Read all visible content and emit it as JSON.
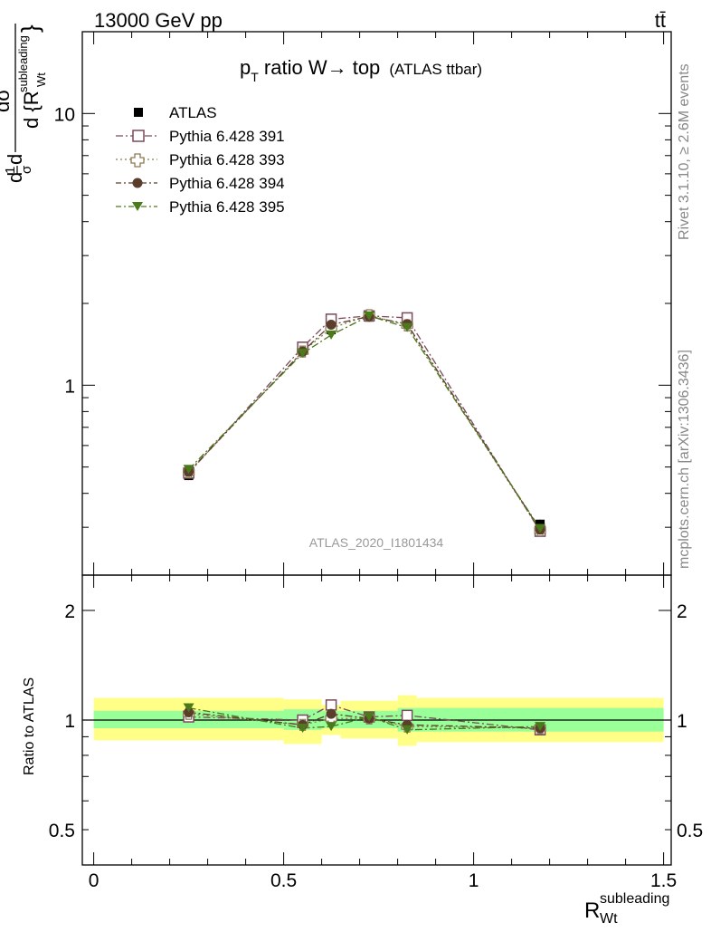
{
  "header": {
    "energy_label": "13000 GeV pp",
    "process_label": "tt̄"
  },
  "side_labels": {
    "rivet": "Rivet 3.1.10, ≥ 2.6M events",
    "mcplots": "mcplots.cern.ch [arXiv:1306.3436]"
  },
  "chart_data": [
    {
      "type": "line",
      "title_main": "p",
      "title_sub": "T",
      "title_rest": " ratio W→ top",
      "title_small": "(ATLAS ttbar)",
      "analysis_label": "ATLAS_2020_I1801434",
      "ylabel_parts": [
        "d",
        "1",
        "σ",
        "d",
        "dσ",
        "fid",
        "d {R",
        "subleading",
        "Wt",
        "}"
      ],
      "yscale": "log",
      "ylim": [
        0.2,
        20
      ],
      "xlim": [
        -0.03,
        1.52
      ],
      "y_ticklabels": [
        {
          "value": 1,
          "label": "1"
        },
        {
          "value": 10,
          "label": "10"
        }
      ],
      "legend_position": "top-left",
      "x": [
        0.25,
        0.55,
        0.625,
        0.725,
        0.825,
        1.175
      ],
      "x_err": [
        0.25,
        0.05,
        0.025,
        0.075,
        0.025,
        0.325
      ],
      "series": [
        {
          "name": "ATLAS",
          "color": "#000000",
          "marker": "square-filled",
          "line": "none",
          "values": [
            0.465,
            1.38,
            1.6,
            1.78,
            1.74,
            0.308
          ]
        },
        {
          "name": "Pythia 6.428 391",
          "color": "#7a4a5a",
          "marker": "square-open",
          "line": "dash-dot",
          "values": [
            0.475,
            1.38,
            1.75,
            1.8,
            1.77,
            0.29
          ]
        },
        {
          "name": "Pythia 6.428 393",
          "color": "#8a7a50",
          "marker": "cross-open",
          "line": "dot",
          "values": [
            0.478,
            1.33,
            1.62,
            1.81,
            1.66,
            0.292
          ]
        },
        {
          "name": "Pythia 6.428 394",
          "color": "#5a3d2b",
          "marker": "circle-filled",
          "line": "dash-dot",
          "values": [
            0.48,
            1.33,
            1.67,
            1.79,
            1.68,
            0.294
          ]
        },
        {
          "name": "Pythia 6.428 395",
          "color": "#4a7a1a",
          "marker": "triangle-down-filled",
          "line": "dash-dot",
          "values": [
            0.49,
            1.31,
            1.53,
            1.8,
            1.63,
            0.297
          ]
        }
      ]
    },
    {
      "type": "line",
      "ylabel": "Ratio to ATLAS",
      "xlabel_main": "R",
      "xlabel_sup": "subleading",
      "xlabel_sub": "Wt",
      "yscale": "log",
      "ylim": [
        0.4,
        2.5
      ],
      "xlim": [
        -0.03,
        1.52
      ],
      "y_ticklabels": [
        {
          "value": 0.5,
          "label": "0.5"
        },
        {
          "value": 1,
          "label": "1"
        },
        {
          "value": 2,
          "label": "2"
        }
      ],
      "x_ticklabels": [
        {
          "value": 0,
          "label": "0"
        },
        {
          "value": 0.5,
          "label": "0.5"
        },
        {
          "value": 1,
          "label": "1"
        },
        {
          "value": 1.5,
          "label": "1.5"
        }
      ],
      "bands": {
        "stat_color": "#99ff99",
        "total_color": "#ffff88",
        "bins": [
          {
            "x_low": 0.0,
            "x_high": 0.5,
            "stat": [
              0.95,
              1.06
            ],
            "total": [
              0.88,
              1.15
            ]
          },
          {
            "x_low": 0.5,
            "x_high": 0.6,
            "stat": [
              0.94,
              1.07
            ],
            "total": [
              0.86,
              1.14
            ]
          },
          {
            "x_low": 0.6,
            "x_high": 0.65,
            "stat": [
              0.95,
              1.06
            ],
            "total": [
              0.91,
              1.1
            ]
          },
          {
            "x_low": 0.65,
            "x_high": 0.8,
            "stat": [
              0.95,
              1.06
            ],
            "total": [
              0.89,
              1.13
            ]
          },
          {
            "x_low": 0.8,
            "x_high": 0.85,
            "stat": [
              0.93,
              1.08
            ],
            "total": [
              0.85,
              1.17
            ]
          },
          {
            "x_low": 0.85,
            "x_high": 1.5,
            "stat": [
              0.93,
              1.08
            ],
            "total": [
              0.87,
              1.15
            ]
          }
        ]
      },
      "x": [
        0.25,
        0.55,
        0.625,
        0.725,
        0.825,
        1.175
      ],
      "series": [
        {
          "name": "Pythia 6.428 391",
          "values": [
            1.02,
            1.0,
            1.1,
            1.02,
            1.03,
            0.94
          ]
        },
        {
          "name": "Pythia 6.428 393",
          "values": [
            1.04,
            0.97,
            1.01,
            1.01,
            0.96,
            0.95
          ]
        },
        {
          "name": "Pythia 6.428 394",
          "values": [
            1.05,
            0.97,
            1.04,
            1.01,
            0.97,
            0.95
          ]
        },
        {
          "name": "Pythia 6.428 395",
          "values": [
            1.08,
            0.95,
            0.96,
            1.02,
            0.94,
            0.96
          ]
        }
      ]
    }
  ]
}
